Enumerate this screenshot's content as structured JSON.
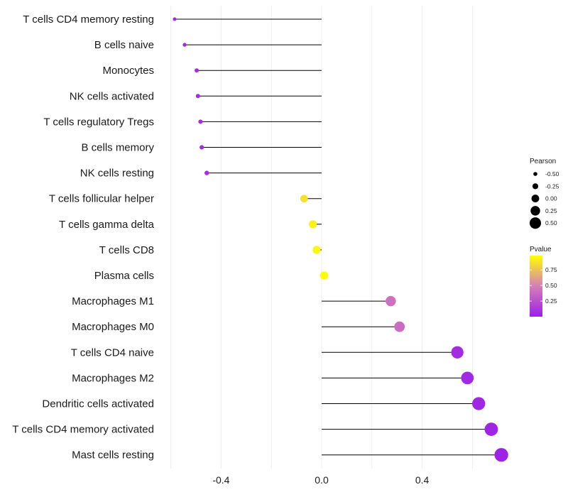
{
  "chart_data": {
    "type": "lollipop",
    "title": "",
    "xlabel": "",
    "ylabel": "",
    "xlim": [
      -0.6,
      0.72
    ],
    "xticks": [
      -0.4,
      0.0,
      0.4
    ],
    "xtick_labels": [
      "-0.4",
      "0.0",
      "0.4"
    ],
    "grid": true,
    "legend_position": "right",
    "categories": [
      "T cells CD4 memory resting",
      "B cells naive",
      "Monocytes",
      "NK cells activated",
      "T cells regulatory  Tregs ",
      "B cells memory",
      "NK cells resting",
      "T cells follicular helper",
      "T cells gamma delta",
      "T cells CD8",
      "Plasma cells",
      "Macrophages M1",
      "Macrophages M0",
      "T cells CD4 naive",
      "Macrophages M2",
      "Dendritic cells activated",
      "T cells CD4 memory activated",
      "Mast cells resting"
    ],
    "values": [
      -0.585,
      -0.545,
      -0.497,
      -0.492,
      -0.482,
      -0.477,
      -0.457,
      -0.07,
      -0.035,
      -0.02,
      0.01,
      0.275,
      0.31,
      0.54,
      0.58,
      0.625,
      0.675,
      0.715
    ],
    "pvalues": [
      0.05,
      0.05,
      0.06,
      0.07,
      0.07,
      0.07,
      0.08,
      0.88,
      0.95,
      0.97,
      0.99,
      0.42,
      0.4,
      0.07,
      0.05,
      0.04,
      0.03,
      0.02
    ],
    "legend_pearson": {
      "title": "Pearson",
      "labels": [
        "-0.50",
        "-0.25",
        "0.00",
        "0.25",
        "0.50"
      ],
      "values": [
        -0.5,
        -0.25,
        0.0,
        0.25,
        0.5
      ]
    },
    "legend_pvalue": {
      "title": "Pvalue",
      "labels": [
        "0.75",
        "0.50",
        "0.25"
      ],
      "values": [
        0.75,
        0.5,
        0.25
      ]
    },
    "colors": {
      "low_p": "#9b1fe8",
      "mid_p": "#d57fb8",
      "high_p": "#ffff00",
      "segment": "#000000",
      "grid": "#ebebeb"
    }
  }
}
